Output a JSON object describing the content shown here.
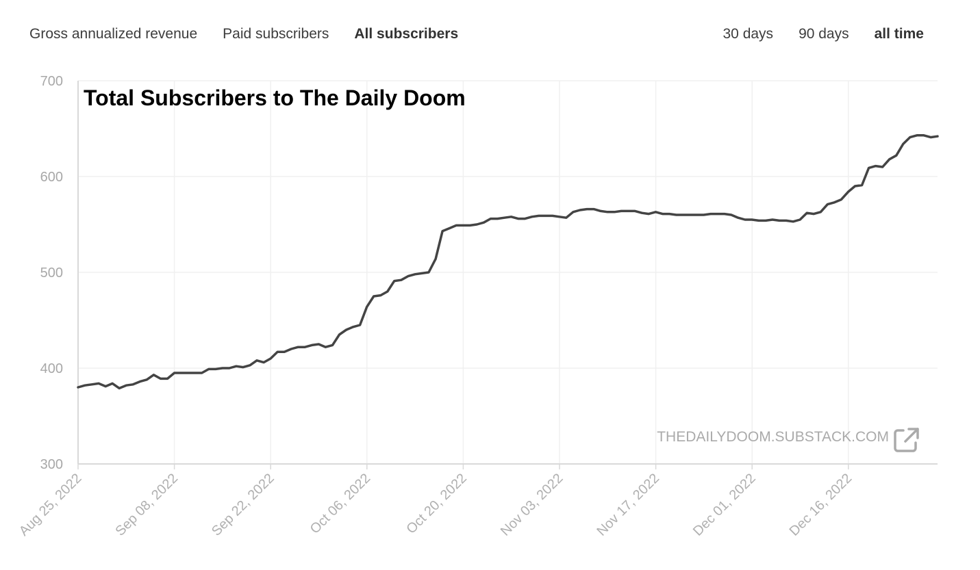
{
  "metric_tabs": [
    {
      "label": "Gross annualized revenue",
      "active": false
    },
    {
      "label": "Paid subscribers",
      "active": false
    },
    {
      "label": "All subscribers",
      "active": true
    }
  ],
  "range_tabs": [
    {
      "label": "30 days",
      "active": false
    },
    {
      "label": "90 days",
      "active": false
    },
    {
      "label": "all time",
      "active": true
    }
  ],
  "watermark": {
    "text": "THEDAILYDOOM.SUBSTACK.COM",
    "icon": "external-link-icon"
  },
  "colors": {
    "line": "#444444",
    "grid": "#f0f0f0",
    "axis": "#d9d9d9"
  },
  "chart_data": {
    "type": "line",
    "title": "Total Subscribers to The Daily Doom",
    "xlabel": "",
    "ylabel": "",
    "ylim": [
      300,
      700
    ],
    "yticks": [
      300,
      400,
      500,
      600,
      700
    ],
    "xticks": [
      "Aug 25, 2022",
      "Sep 08, 2022",
      "Sep 22, 2022",
      "Oct 06, 2022",
      "Oct 20, 2022",
      "Nov 03, 2022",
      "Nov 17, 2022",
      "Dec 01, 2022",
      "Dec 16, 2022"
    ],
    "grid": true,
    "series": [
      {
        "values": [
          380,
          382,
          383,
          384,
          381,
          384,
          379,
          382,
          383,
          386,
          388,
          393,
          389,
          389,
          395,
          395,
          395,
          395,
          395,
          399,
          399,
          400,
          400,
          402,
          401,
          403,
          408,
          406,
          410,
          417,
          417,
          420,
          422,
          422,
          424,
          425,
          422,
          424,
          435,
          440,
          443,
          445,
          464,
          475,
          476,
          480,
          491,
          492,
          496,
          498,
          499,
          500,
          514,
          543,
          546,
          549,
          549,
          549,
          550,
          552,
          556,
          556,
          557,
          558,
          556,
          556,
          558,
          559,
          559,
          559,
          558,
          557,
          563,
          565,
          566,
          566,
          564,
          563,
          563,
          564,
          564,
          564,
          562,
          561,
          563,
          561,
          561,
          560,
          560,
          560,
          560,
          560,
          561,
          561,
          561,
          560,
          557,
          555,
          555,
          554,
          554,
          555,
          554,
          554,
          553,
          555,
          562,
          561,
          563,
          571,
          573,
          576,
          584,
          590,
          591,
          609,
          611,
          610,
          618,
          622,
          634,
          641,
          643,
          643,
          641,
          642
        ]
      }
    ]
  }
}
